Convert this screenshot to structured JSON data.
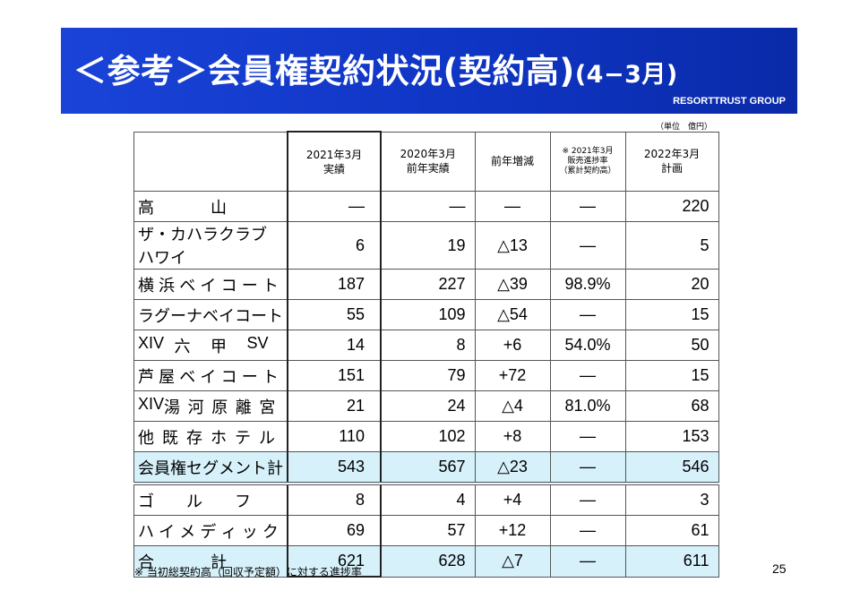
{
  "header": {
    "title_main": "＜参考＞会員権契約状況(契約高)",
    "title_period": "(4−3月)",
    "brand": "RESORTTRUST GROUP"
  },
  "unit_note": "（単位　億円）",
  "table": {
    "headers": {
      "current": "2021年3月\n実績",
      "previous": "2020年3月\n前年実績",
      "change": "前年増減",
      "progress": "※ 2021年3月\n販売進捗率\n（累計契約高）",
      "plan": "2022年3月\n計画"
    },
    "rows": [
      {
        "name": "高　　　　　　　　　　山",
        "name_parts": [
          "高",
          "山"
        ],
        "current": "―",
        "previous": "―",
        "change": "―",
        "progress": "―",
        "plan": "220"
      },
      {
        "name": "ザ・カハラクラブ ハワイ",
        "name_parts": [
          "ザ・カハラクラブ ハワイ"
        ],
        "current": "6",
        "previous": "19",
        "change": "△13",
        "progress": "―",
        "plan": "5"
      },
      {
        "name": "横 浜 ベ イ コ ー ト",
        "name_parts": [
          "横",
          "浜",
          "ベ",
          "イ",
          "コ",
          "ー",
          "ト"
        ],
        "current": "187",
        "previous": "227",
        "change": "△39",
        "progress": "98.9%",
        "plan": "20"
      },
      {
        "name": "ラ グ ー ナ ベ イ コ ー ト",
        "name_parts": [
          "ラ",
          "グ",
          "ー",
          "ナ",
          "ベ",
          "イ",
          "コ",
          "ー",
          "ト"
        ],
        "current": "55",
        "previous": "109",
        "change": "△54",
        "progress": "―",
        "plan": "15"
      },
      {
        "name": "XIV 六 甲 SV",
        "name_parts": [
          "XIV",
          "六",
          "甲",
          "SV"
        ],
        "current": "14",
        "previous": "8",
        "change": "+6",
        "progress": "54.0%",
        "plan": "50"
      },
      {
        "name": "芦 屋 ベ イ コ ー ト",
        "name_parts": [
          "芦",
          "屋",
          "ベ",
          "イ",
          "コ",
          "ー",
          "ト"
        ],
        "current": "151",
        "previous": "79",
        "change": "+72",
        "progress": "―",
        "plan": "15"
      },
      {
        "name": "XIV 湯 河 原 離 宮",
        "name_parts": [
          "XIV",
          "湯",
          "河",
          "原",
          "離",
          "宮"
        ],
        "current": "21",
        "previous": "24",
        "change": "△4",
        "progress": "81.0%",
        "plan": "68"
      },
      {
        "name": "他 既 存 ホ テ ル",
        "name_parts": [
          "他",
          "既",
          "存",
          "ホ",
          "テ",
          "ル"
        ],
        "current": "110",
        "previous": "102",
        "change": "+8",
        "progress": "―",
        "plan": "153"
      },
      {
        "name": "会 員 権 セ グ メ ン ト 計",
        "name_parts": [
          "会",
          "員",
          "権",
          "セ",
          "グ",
          "メ",
          "ン",
          "ト",
          "計"
        ],
        "current": "543",
        "previous": "567",
        "change": "△23",
        "progress": "―",
        "plan": "546",
        "kind": "segment"
      },
      {
        "name": "ゴ ル フ",
        "name_parts": [
          "ゴ",
          "ル",
          "フ"
        ],
        "current": "8",
        "previous": "4",
        "change": "+4",
        "progress": "―",
        "plan": "3",
        "kind": "gap"
      },
      {
        "name": "ハ イ メ デ ィ ッ ク",
        "name_parts": [
          "ハ",
          "イ",
          "メ",
          "デ",
          "ィ",
          "ッ",
          "ク"
        ],
        "current": "69",
        "previous": "57",
        "change": "+12",
        "progress": "―",
        "plan": "61"
      },
      {
        "name": "合 計",
        "name_parts": [
          "合",
          "計"
        ],
        "current": "621",
        "previous": "628",
        "change": "△7",
        "progress": "―",
        "plan": "611",
        "kind": "total"
      }
    ]
  },
  "footnote": "※ 当初総契約高（回収予定額）に対する進捗率",
  "page_number": "25"
}
